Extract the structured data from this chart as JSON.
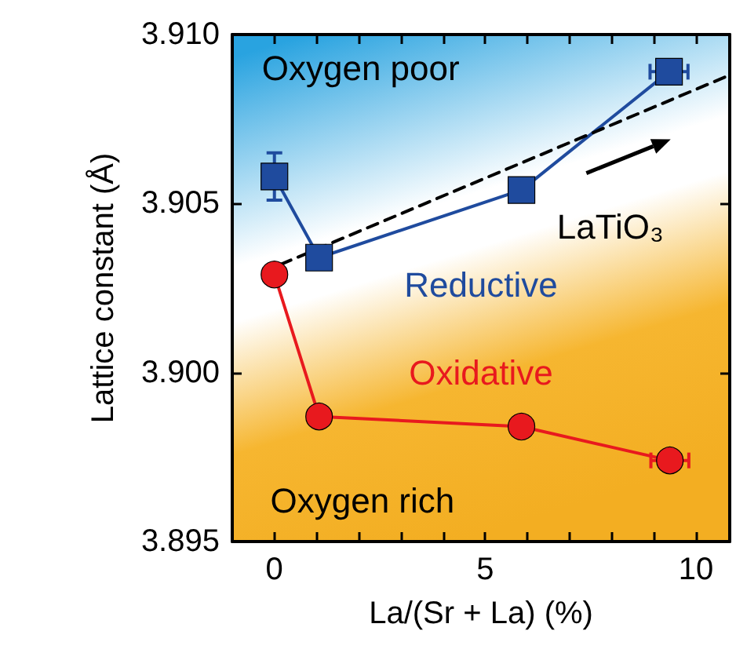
{
  "chart_data": {
    "type": "line",
    "xlabel": "La/(Sr + La) (%)",
    "ylabel": "Lattice constant (Å)",
    "xlim": [
      -1,
      10.8
    ],
    "ylim": [
      3.895,
      3.91
    ],
    "xticks": [
      0,
      {
        "value": 1,
        "label": null
      },
      {
        "value": 2,
        "label": null
      },
      {
        "value": 3,
        "label": null
      },
      {
        "value": 4,
        "label": null
      },
      5,
      {
        "value": 6,
        "label": null
      },
      {
        "value": 7,
        "label": null
      },
      {
        "value": 8,
        "label": null
      },
      {
        "value": 9,
        "label": null
      },
      10
    ],
    "yticks": [
      {
        "value": 3.895,
        "label": "3.895"
      },
      {
        "value": 3.9,
        "label": "3.900"
      },
      {
        "value": 3.905,
        "label": "3.905"
      },
      {
        "value": 3.91,
        "label": "3.910"
      }
    ],
    "grid": false,
    "legend": false,
    "series": [
      {
        "name": "Reductive",
        "color": "#1f4b9e",
        "marker": "square",
        "x": [
          0,
          1.06,
          5.86,
          9.36
        ],
        "values": [
          3.9058,
          3.9034,
          3.9054,
          3.9089
        ],
        "errors": [
          0.0007,
          null,
          null,
          null
        ],
        "xerrors": [
          null,
          null,
          null,
          0.45
        ]
      },
      {
        "name": "Oxidative",
        "color": "#e8191e",
        "marker": "circle",
        "x": [
          0,
          1.06,
          5.86,
          9.38
        ],
        "values": [
          3.9029,
          3.8987,
          3.8984,
          3.8974
        ],
        "xerrors": [
          null,
          null,
          null,
          0.45
        ]
      },
      {
        "color": "#000000",
        "marker": "none",
        "line_style": "dashed",
        "x": [
          0.15,
          10.8
        ],
        "values": [
          3.9032,
          3.9088
        ]
      }
    ],
    "annotations": [
      "Oxygen poor",
      "Oxygen rich",
      "LaTiO₃"
    ]
  }
}
